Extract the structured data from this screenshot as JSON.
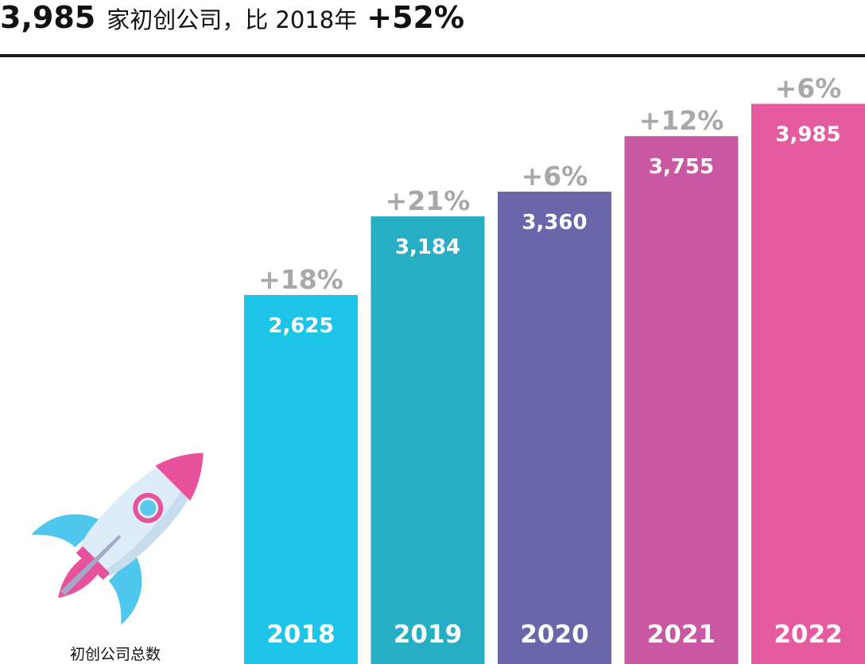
{
  "headline": {
    "count": "3,985",
    "text": "家初创公司，比 2018年",
    "change": "+52%"
  },
  "caption": "初创公司总数",
  "chart_data": {
    "type": "bar",
    "title": "",
    "xlabel": "",
    "ylabel": "",
    "categories": [
      "2018",
      "2019",
      "2020",
      "2021",
      "2022"
    ],
    "values": [
      2625,
      3184,
      3360,
      3755,
      3985
    ],
    "value_labels": [
      "2,625",
      "3,184",
      "3,360",
      "3,755",
      "3,985"
    ],
    "change_labels": [
      "+18%",
      "+21%",
      "+6%",
      "+12%",
      "+6%"
    ],
    "colors": [
      "#1cc5e8",
      "#25aec4",
      "#6b65a9",
      "#c858a2",
      "#e65aa0"
    ],
    "change_label_color": "#a8a8a8",
    "ylim": [
      0,
      4220
    ],
    "grid": false,
    "legend": "none"
  },
  "icons": {
    "rocket": "rocket-icon",
    "colors": {
      "body": "#dcedf8",
      "nose": "#e8529c",
      "window_ring": "#e8529c",
      "window": "#58c8ec",
      "fins": "#4fc6ee",
      "flame": "#e8529c",
      "shade": "#a3a9c6"
    }
  }
}
